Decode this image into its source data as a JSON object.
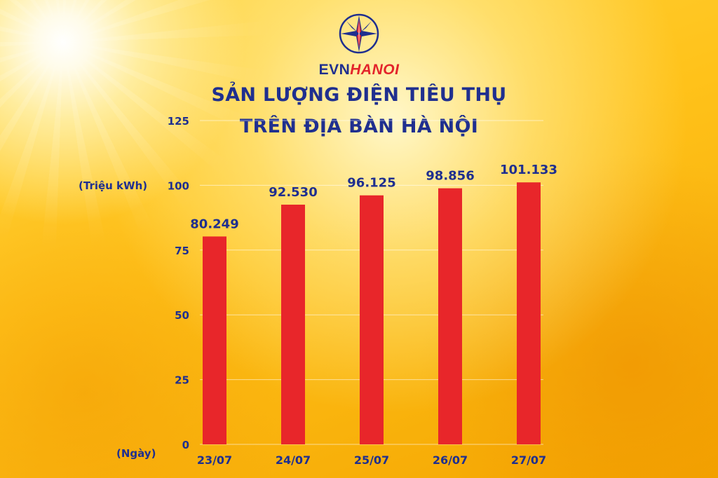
{
  "logo": {
    "brand_evn": "EVN",
    "brand_hanoi": "HANOI",
    "icon": "evn-star-logo-icon",
    "colors": {
      "blue": "#1f2f8f",
      "red": "#e3242b"
    }
  },
  "header": {
    "title_line_1": "SẢN LƯỢNG ĐIỆN TIÊU THỤ",
    "title_line_2": "TRÊN ĐỊA BÀN HÀ NỘI"
  },
  "chart_data": {
    "type": "bar",
    "title": "SẢN LƯỢNG ĐIỆN TIÊU THỤ TRÊN ĐỊA BÀN HÀ NỘI",
    "ylabel": "(Triệu kWh)",
    "xlabel": "(Ngày)",
    "categories": [
      "23/07",
      "24/07",
      "25/07",
      "26/07",
      "27/07"
    ],
    "values": [
      80.249,
      92.53,
      96.125,
      98.856,
      101.133
    ],
    "value_labels": [
      "80.249",
      "92.530",
      "96.125",
      "98.856",
      "101.133"
    ],
    "ylim": [
      0,
      125
    ],
    "yticks": [
      0,
      25,
      50,
      75,
      100,
      125
    ],
    "grid": true,
    "bar_color": "#e8262a",
    "text_color": "#1f2f8f"
  }
}
